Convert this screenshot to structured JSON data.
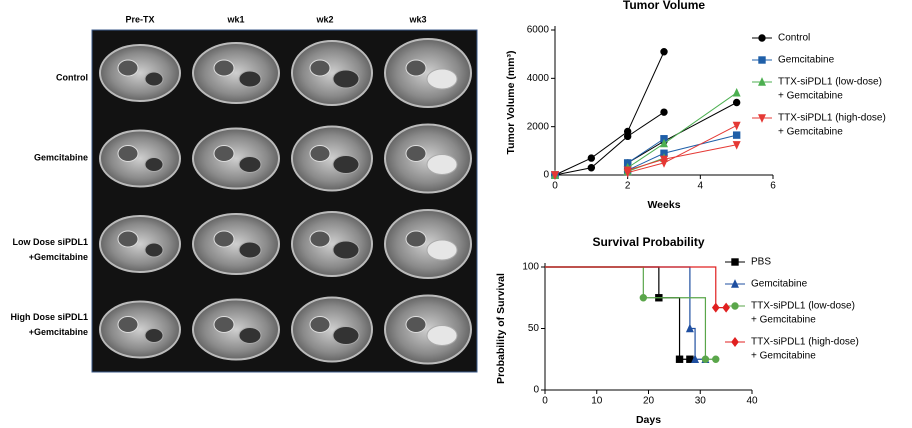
{
  "figure": {
    "columns": [
      "Pre-TX",
      "wk1",
      "wk2",
      "wk3"
    ],
    "rows": [
      [
        "Control"
      ],
      [
        "Gemcitabine"
      ],
      [
        "Low Dose siPDL1",
        "+Gemcitabine"
      ],
      [
        "High Dose siPDL1",
        "+Gemcitabine"
      ]
    ]
  },
  "chart_data": [
    {
      "type": "line",
      "title": "Tumor Volume",
      "xlabel": "Weeks",
      "ylabel": "Tumor Volume (mm³)",
      "x": [
        0,
        1,
        2,
        3,
        5
      ],
      "xlim": [
        0,
        6
      ],
      "xticks": [
        0,
        2,
        4,
        6
      ],
      "ylim": [
        0,
        6000
      ],
      "yticks": [
        0,
        2000,
        4000,
        6000
      ],
      "series": [
        {
          "name": [
            "Control"
          ],
          "color": "#000000",
          "marker": "circle",
          "lines": [
            [
              0,
              700,
              1800,
              5100,
              null
            ],
            [
              0,
              300,
              1600,
              2600,
              null
            ],
            [
              0,
              null,
              500,
              1400,
              3000
            ]
          ]
        },
        {
          "name": [
            "Gemcitabine"
          ],
          "color": "#1f5fa8",
          "marker": "square",
          "lines": [
            [
              0,
              null,
              500,
              1500,
              null
            ],
            [
              0,
              null,
              200,
              900,
              1650
            ]
          ]
        },
        {
          "name": [
            "TTX-siPDL1 (low-dose)",
            "+ Gemcitabine"
          ],
          "color": "#4caf50",
          "marker": "triangle",
          "lines": [
            [
              0,
              null,
              300,
              1300,
              3400
            ],
            [
              0,
              null,
              150,
              700,
              null
            ]
          ]
        },
        {
          "name": [
            "TTX-siPDL1 (high-dose)",
            "+ Gemcitabine"
          ],
          "color": "#e53935",
          "marker": "triangle-down",
          "lines": [
            [
              0,
              null,
              100,
              500,
              2050
            ],
            [
              0,
              null,
              200,
              650,
              1250
            ]
          ]
        }
      ]
    },
    {
      "type": "step",
      "title": "Survival Probability",
      "xlabel": "Days",
      "ylabel": "Probability of Survival",
      "xlim": [
        0,
        40
      ],
      "xticks": [
        0,
        10,
        20,
        30,
        40
      ],
      "ylim": [
        0,
        100
      ],
      "yticks": [
        0,
        50,
        100
      ],
      "series": [
        {
          "name": [
            "PBS"
          ],
          "color": "#000000",
          "marker": "square",
          "x": [
            0,
            22,
            26,
            28
          ],
          "values": [
            100,
            75,
            25,
            25
          ]
        },
        {
          "name": [
            "Gemcitabine"
          ],
          "color": "#1f4fa0",
          "marker": "triangle",
          "x": [
            0,
            28,
            29,
            31
          ],
          "values": [
            100,
            50,
            25,
            25
          ]
        },
        {
          "name": [
            "TTX-siPDL1 (low-dose)",
            "+ Gemcitabine"
          ],
          "color": "#5aa64a",
          "marker": "circle",
          "x": [
            0,
            19,
            31,
            33
          ],
          "values": [
            100,
            75,
            25,
            25
          ]
        },
        {
          "name": [
            "TTX-siPDL1 (high-dose)",
            "+ Gemcitabine"
          ],
          "color": "#e02020",
          "marker": "diamond",
          "x": [
            0,
            33,
            35
          ],
          "values": [
            100,
            67,
            67
          ]
        }
      ]
    }
  ]
}
